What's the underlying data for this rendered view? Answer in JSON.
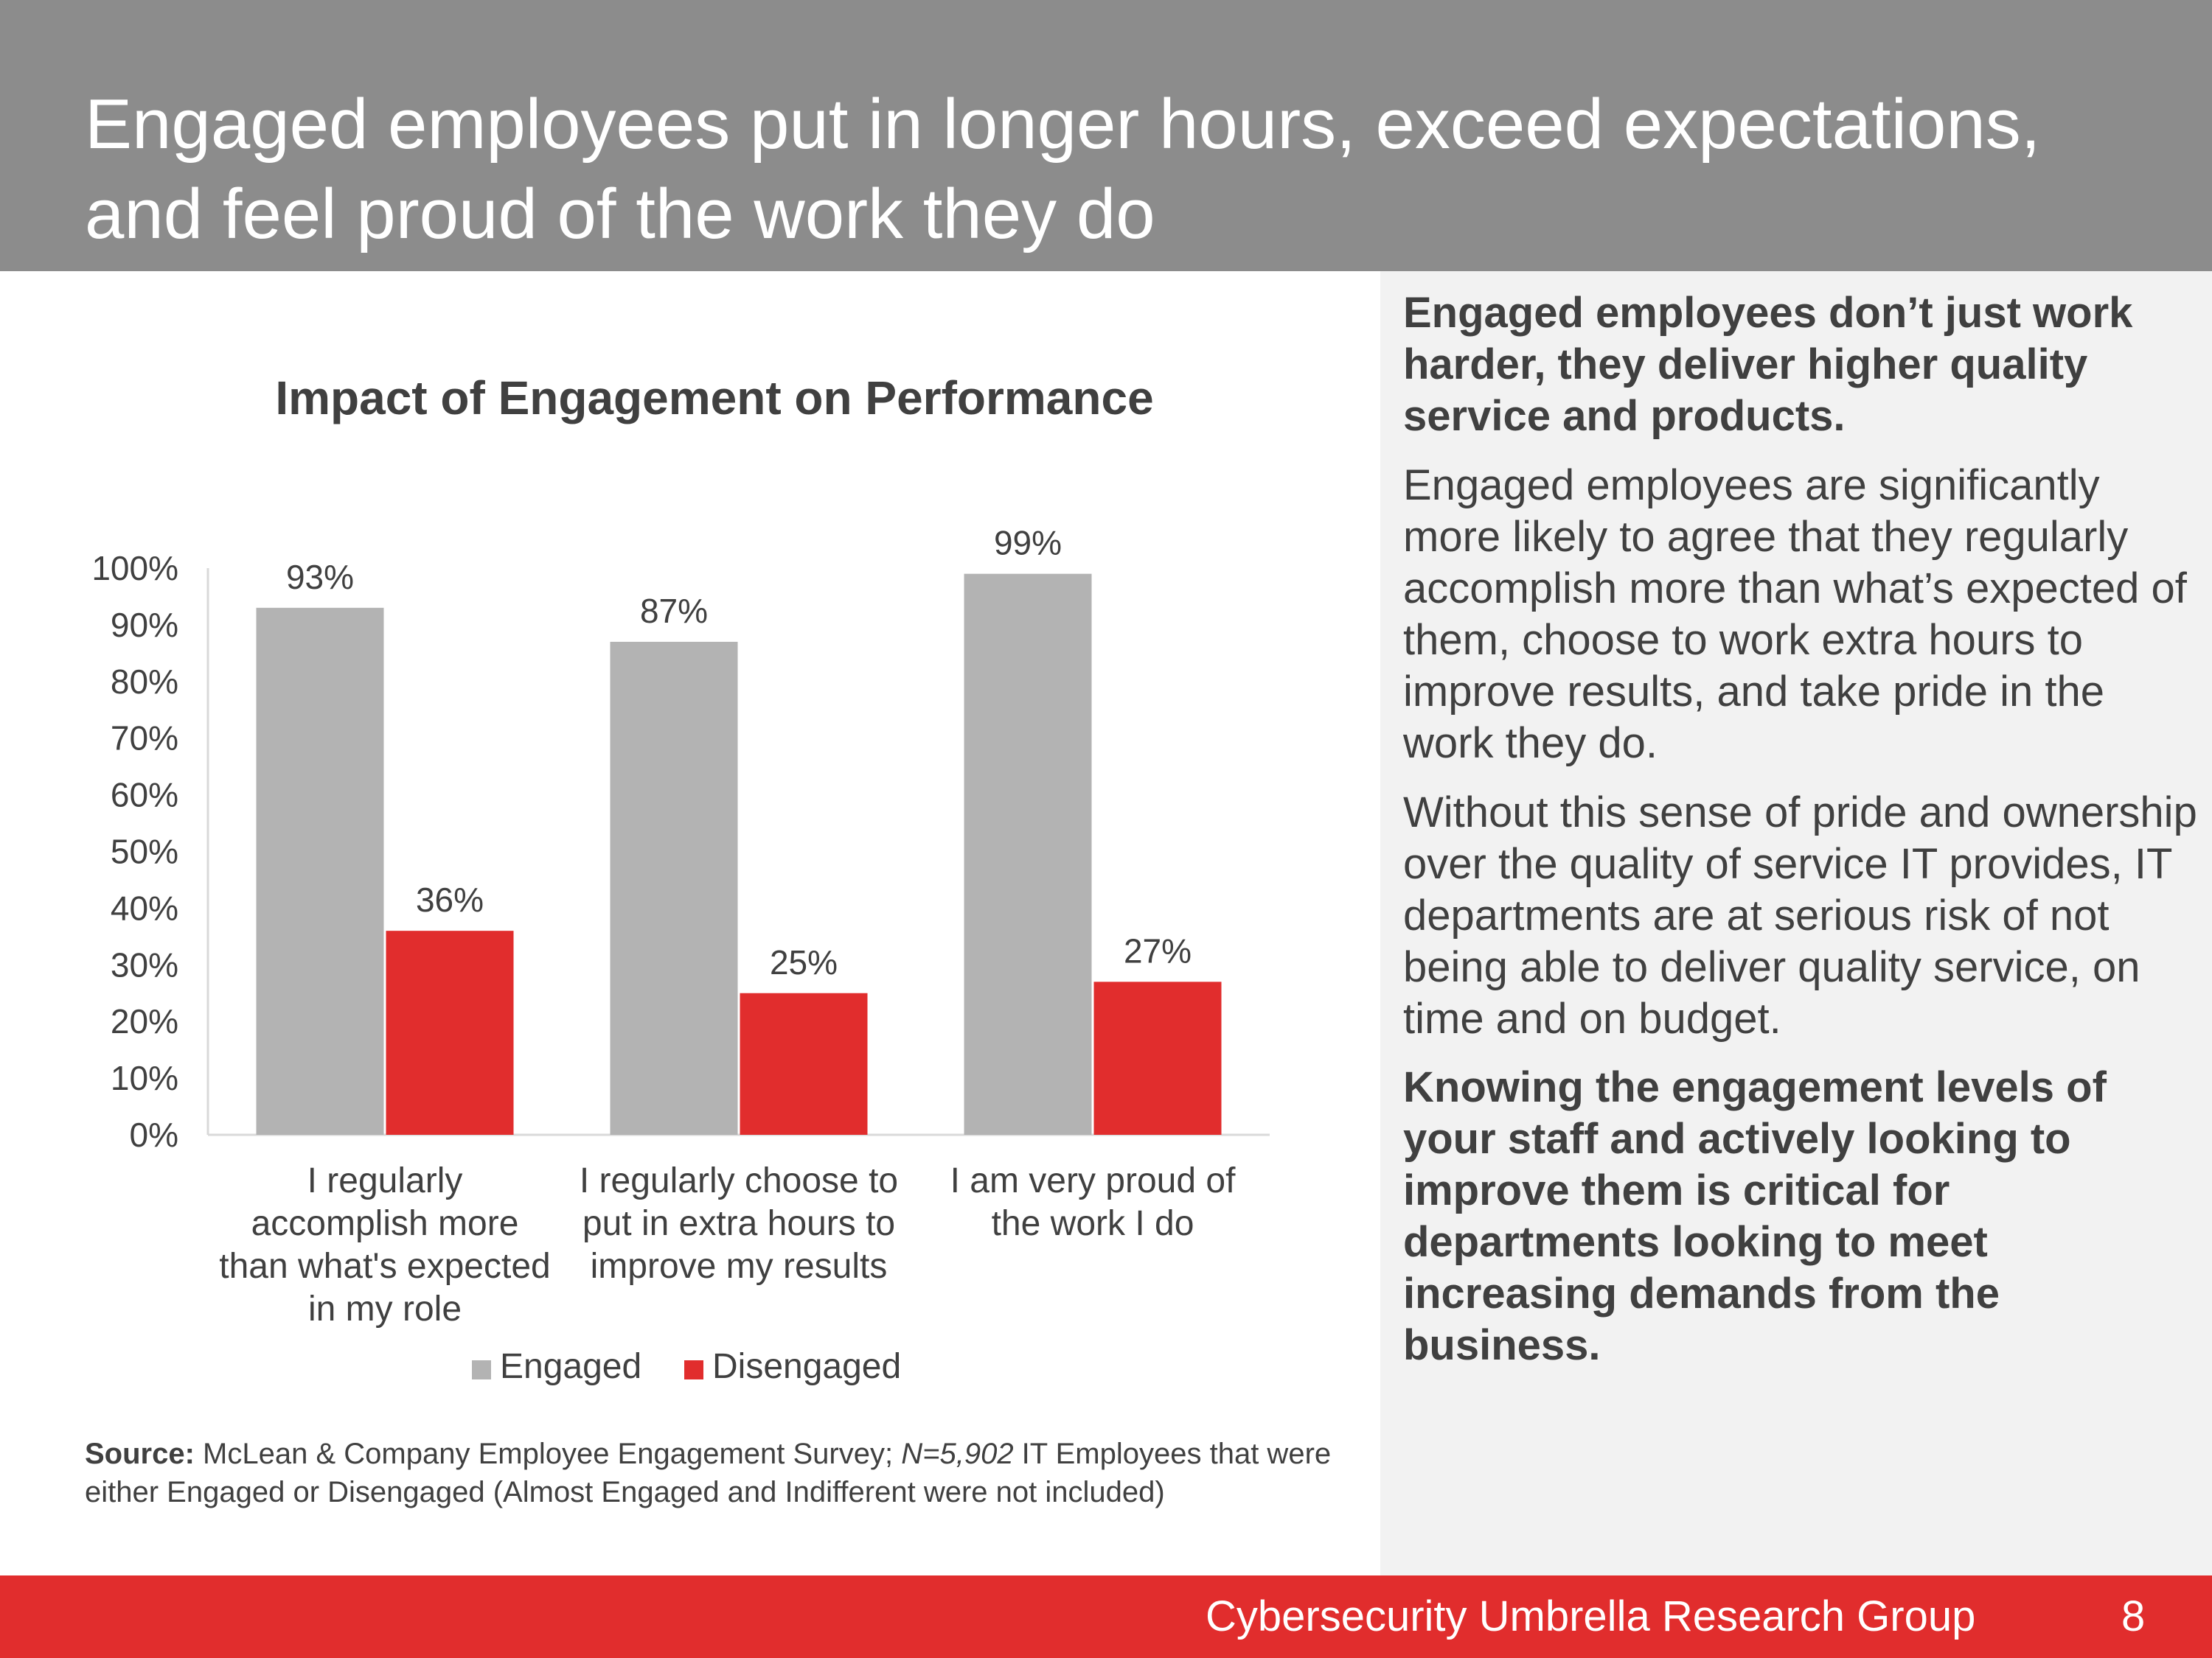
{
  "slide": {
    "title": "Engaged employees put in longer hours, exceed expectations, and feel proud of the work they do",
    "footer_org": "Cybersecurity Umbrella Research Group",
    "page_number": "8"
  },
  "sidebar": {
    "para1": "Engaged employees don’t just work harder, they deliver higher quality service and products.",
    "para2": "Engaged employees are significantly more likely to agree that they regularly accomplish more than what’s expected of them, choose to work extra hours to improve results, and take pride in the work they do.",
    "para3": "Without this sense of pride and ownership over the quality of service IT provides, IT departments are at serious risk of not being able to deliver quality service, on time and on budget.",
    "para4": "Knowing the engagement levels of your staff and actively looking to improve them is critical for departments looking to meet increasing demands from the business."
  },
  "source": {
    "label": "Source:",
    "text_before": " McLean & Company Employee Engagement Survey; ",
    "italic": "N=5,902",
    "text_after": " IT Employees that were either Engaged or Disengaged (Almost Engaged and Indifferent were not included)"
  },
  "colors": {
    "header_bg": "#8c8c8c",
    "engaged": "#b3b3b3",
    "disengaged": "#e12d2d",
    "footer_bg": "#e12d2d",
    "panel_bg": "#f2f2f2"
  },
  "chart_data": {
    "type": "bar",
    "title": "Impact of Engagement on Performance",
    "categories": [
      [
        "I regularly",
        "accomplish more",
        "than what's expected",
        "in my role"
      ],
      [
        "I regularly choose to",
        "put in extra hours to",
        "improve my results"
      ],
      [
        "I am very proud of",
        "the work I do"
      ]
    ],
    "series": [
      {
        "name": "Engaged",
        "values": [
          93,
          87,
          99
        ],
        "labels": [
          "93%",
          "87%",
          "99%"
        ],
        "color": "#b3b3b3"
      },
      {
        "name": "Disengaged",
        "values": [
          36,
          25,
          27
        ],
        "labels": [
          "36%",
          "25%",
          "27%"
        ],
        "color": "#e12d2d"
      }
    ],
    "ylim": [
      0,
      100
    ],
    "yticks": [
      "0%",
      "10%",
      "20%",
      "30%",
      "40%",
      "50%",
      "60%",
      "70%",
      "80%",
      "90%",
      "100%"
    ],
    "grid": false,
    "legend": "bottom"
  }
}
